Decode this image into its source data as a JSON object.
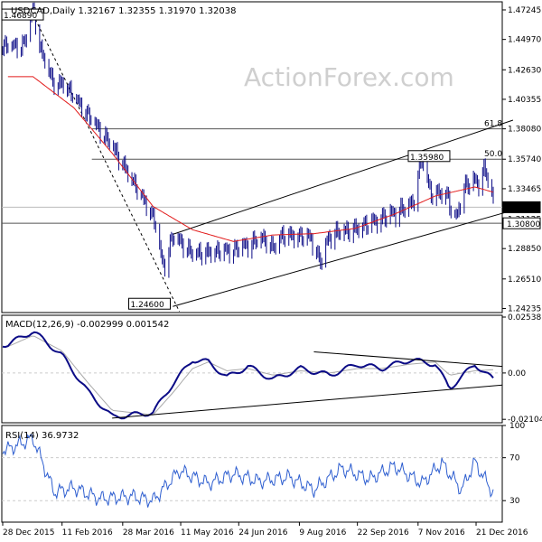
{
  "watermark": "ActionForex.com",
  "colors": {
    "bar": "#0b0b86",
    "ma": "#e21b1b",
    "macd_line": "#0b0b86",
    "signal_line": "#aaaaaa",
    "rsi_line": "#2f5fd0",
    "trend": "#000000",
    "hline": "#555555",
    "last_box": "#000000",
    "gridline": "#cccccc"
  },
  "chart_data": [
    {
      "type": "line",
      "panel": "price",
      "title": "USDCAD,Daily  1.32167 1.32355 1.31970 1.32038",
      "ylim": [
        1.2392,
        1.4787
      ],
      "y_ticks": [
        "1.47245",
        "1.44970",
        "1.42630",
        "1.40355",
        "1.38080",
        "1.35740",
        "1.33465",
        "1.31125",
        "1.28850",
        "1.26510",
        "1.24235"
      ],
      "y_tick_values": [
        1.47245,
        1.4497,
        1.4263,
        1.40355,
        1.3808,
        1.3574,
        1.33465,
        1.31125,
        1.2885,
        1.2651,
        1.24235
      ],
      "x_dates": [
        "2016-01-20",
        "2016-02-20",
        "2016-03-20",
        "2016-04-20",
        "2016-05-20",
        "2016-06-20",
        "2016-07-20",
        "2016-08-20",
        "2016-09-20",
        "2016-10-20",
        "2016-11-20",
        "2016-12-20",
        "2017-01-03"
      ],
      "close": [
        1.443,
        1.404,
        1.366,
        1.312,
        1.283,
        1.286,
        1.298,
        1.296,
        1.302,
        1.315,
        1.329,
        1.339,
        1.31
      ],
      "x_ticks": [
        "28 Dec 2015",
        "11 Feb 2016",
        "28 Mar 2016",
        "11 May 2016",
        "24 Jun 2016",
        "9 Aug 2016",
        "22 Sep 2016",
        "7 Nov 2016",
        "21 Dec 2016"
      ],
      "series": [
        {
          "name": "",
          "x": [
            "2016-01-20",
            "2016-02-20",
            "2016-03-20",
            "2016-04-20",
            "2016-05-20",
            "2016-06-20",
            "2016-07-20",
            "2016-08-20",
            "2016-09-20",
            "2016-10-20",
            "2016-11-20",
            "2016-12-20",
            "2017-01-03"
          ],
          "y": [
            1.443,
            1.404,
            1.366,
            1.312,
            1.283,
            1.286,
            1.298,
            1.296,
            1.302,
            1.315,
            1.329,
            1.339,
            1.31
          ]
        }
      ],
      "ma": [
        1.421,
        1.397,
        1.362,
        1.321,
        1.303,
        1.294,
        1.299,
        1.3,
        1.304,
        1.315,
        1.329,
        1.336,
        1.332
      ],
      "annotations": [
        {
          "text": "1.46890"
        },
        {
          "text": "1.24600"
        },
        {
          "text": "1.35980"
        },
        {
          "text": "61.8"
        },
        {
          "text": "50.0"
        }
      ],
      "horizontal_levels": [
        1.3808,
        1.3574
      ],
      "horizontal_level_labels": [
        "61.8",
        "50.0"
      ],
      "last_price": "1.32038",
      "last_price_value": 1.32038,
      "support_level": "1.30800",
      "support_level_value": 1.308,
      "trendlines": [
        {
          "from": [
            "2016-01-20",
            1.4689
          ],
          "to": [
            "2016-05-10",
            1.24
          ]
        },
        {
          "from": [
            "2016-05-05",
            1.2439
          ],
          "to": [
            "2017-01-18",
            1.318
          ]
        },
        {
          "from": [
            "2016-05-05",
            1.2995
          ],
          "to": [
            "2017-01-18",
            1.3875
          ]
        }
      ]
    },
    {
      "type": "line",
      "panel": "macd",
      "title": "MACD(12,26,9) -0.002999 0.001542",
      "ylim": [
        -0.0226,
        0.0262
      ],
      "y_ticks": [
        "0.02538",
        "0.00",
        "-0.02104"
      ],
      "y_tick_values": [
        0.02538,
        0.0,
        -0.02104
      ],
      "x_dates": [
        "2016-01-01",
        "2016-01-20",
        "2016-02-11",
        "2016-03-01",
        "2016-03-20",
        "2016-04-20",
        "2016-05-05",
        "2016-05-20",
        "2016-06-01",
        "2016-06-15",
        "2016-07-01",
        "2016-07-20",
        "2016-08-10",
        "2016-09-01",
        "2016-09-22",
        "2016-10-10",
        "2016-11-01",
        "2016-11-20",
        "2016-12-01",
        "2016-12-20",
        "2017-01-03"
      ],
      "series": [
        {
          "name": "",
          "values": [
            0.013,
            0.019,
            0.008,
            -0.008,
            -0.02,
            -0.018,
            -0.005,
            0.006,
            0.005,
            -0.002,
            0.003,
            -0.003,
            0.002,
            -0.001,
            0.004,
            0.002,
            0.006,
            0.004,
            -0.007,
            0.004,
            -0.003
          ]
        },
        {
          "name": "",
          "values": [
            0.012,
            0.017,
            0.01,
            -0.004,
            -0.017,
            -0.019,
            -0.009,
            0.002,
            0.005,
            0.001,
            0.002,
            -0.001,
            0.001,
            0.0,
            0.002,
            0.002,
            0.004,
            0.005,
            -0.001,
            0.001,
            0.0015
          ]
        }
      ],
      "trendlines": [
        {
          "from": [
            "2016-03-20",
            -0.0205
          ],
          "to": [
            "2017-01-10",
            -0.0055
          ]
        },
        {
          "from": [
            "2016-08-20",
            0.0096
          ],
          "to": [
            "2017-01-10",
            0.003
          ]
        }
      ]
    },
    {
      "type": "line",
      "panel": "rsi",
      "title": "RSI(14) 36.9732",
      "ylim": [
        10,
        100
      ],
      "y_ticks": [
        "100",
        "70",
        "30"
      ],
      "y_tick_values": [
        100,
        70,
        30
      ],
      "x_dates": [
        "2016-01-01",
        "2016-01-20",
        "2016-02-05",
        "2016-02-20",
        "2016-03-10",
        "2016-04-05",
        "2016-04-20",
        "2016-05-10",
        "2016-06-01",
        "2016-06-20",
        "2016-07-10",
        "2016-08-01",
        "2016-08-20",
        "2016-09-10",
        "2016-10-01",
        "2016-10-20",
        "2016-11-10",
        "2016-11-25",
        "2016-12-10",
        "2016-12-20",
        "2017-01-03"
      ],
      "series": [
        {
          "name": "",
          "values": [
            78,
            88,
            38,
            42,
            32,
            34,
            30,
            58,
            46,
            55,
            48,
            52,
            40,
            60,
            50,
            62,
            46,
            65,
            40,
            66,
            37
          ]
        }
      ],
      "reference_lines": [
        70,
        30
      ]
    }
  ]
}
